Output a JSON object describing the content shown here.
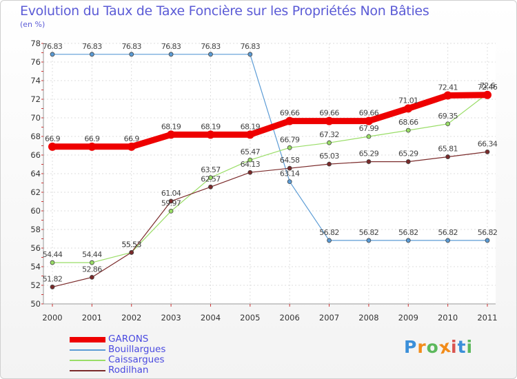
{
  "chart_data": {
    "type": "line",
    "title": "Evolution du Taux de Taxe Foncière sur les Propriétés Non Bâties",
    "subtitle": "(en %)",
    "x": [
      "2000",
      "2001",
      "2002",
      "2003",
      "2004",
      "2005",
      "2006",
      "2007",
      "2008",
      "2009",
      "2010",
      "2011"
    ],
    "ylim": [
      50,
      78
    ],
    "yticks": [
      50,
      52,
      54,
      56,
      58,
      60,
      62,
      64,
      66,
      68,
      70,
      72,
      74,
      76,
      78
    ],
    "grid": true,
    "legend_position": "bottom-left",
    "series": [
      {
        "name": "GARONS",
        "color": "#ee0000",
        "values": [
          66.9,
          66.9,
          66.9,
          68.19,
          68.19,
          68.19,
          69.66,
          69.66,
          69.66,
          71.01,
          72.41,
          72.46
        ],
        "labels": [
          "66.9",
          "66.9",
          "66.9",
          "68.19",
          "68.19",
          "68.19",
          "69.66",
          "69.66",
          "69.66",
          "71.01",
          "72.41",
          "72.46"
        ]
      },
      {
        "name": "Bouillargues",
        "color": "#5b9bd5",
        "values": [
          76.83,
          76.83,
          76.83,
          76.83,
          76.83,
          76.83,
          63.14,
          56.82,
          56.82,
          56.82,
          56.82,
          56.82
        ],
        "labels": [
          "76.83",
          "76.83",
          "76.83",
          "76.83",
          "76.83",
          "76.83",
          "63.14",
          "56.82",
          "56.82",
          "56.82",
          "56.82",
          "56.82"
        ]
      },
      {
        "name": "Caissargues",
        "color": "#99dd66",
        "values": [
          54.44,
          54.44,
          55.53,
          59.97,
          63.57,
          65.47,
          66.79,
          67.32,
          67.99,
          68.66,
          69.35,
          72.6
        ],
        "labels": [
          "54.44",
          "54.44",
          "55.53",
          "59.97",
          "63.57",
          "65.47",
          "66.79",
          "67.32",
          "67.99",
          "68.66",
          "69.35",
          "72.6"
        ]
      },
      {
        "name": "Rodilhan",
        "color": "#7a2a2a",
        "values": [
          51.82,
          52.86,
          55.53,
          61.04,
          62.57,
          64.13,
          64.58,
          65.03,
          65.29,
          65.29,
          65.81,
          66.34
        ],
        "labels": [
          "51.82",
          "52.86",
          "55.53",
          "61.04",
          "62.57",
          "64.13",
          "64.58",
          "65.03",
          "65.29",
          "65.29",
          "65.81",
          "66.34"
        ]
      }
    ]
  },
  "logo": {
    "letters": [
      "P",
      "r",
      "o",
      "x",
      "i",
      "t",
      "i"
    ],
    "colors": [
      "#3b8fd9",
      "#f28c1a",
      "#5cb85c",
      "#f28c1a",
      "#d9534f",
      "#3b8fd9",
      "#5cb85c"
    ]
  }
}
